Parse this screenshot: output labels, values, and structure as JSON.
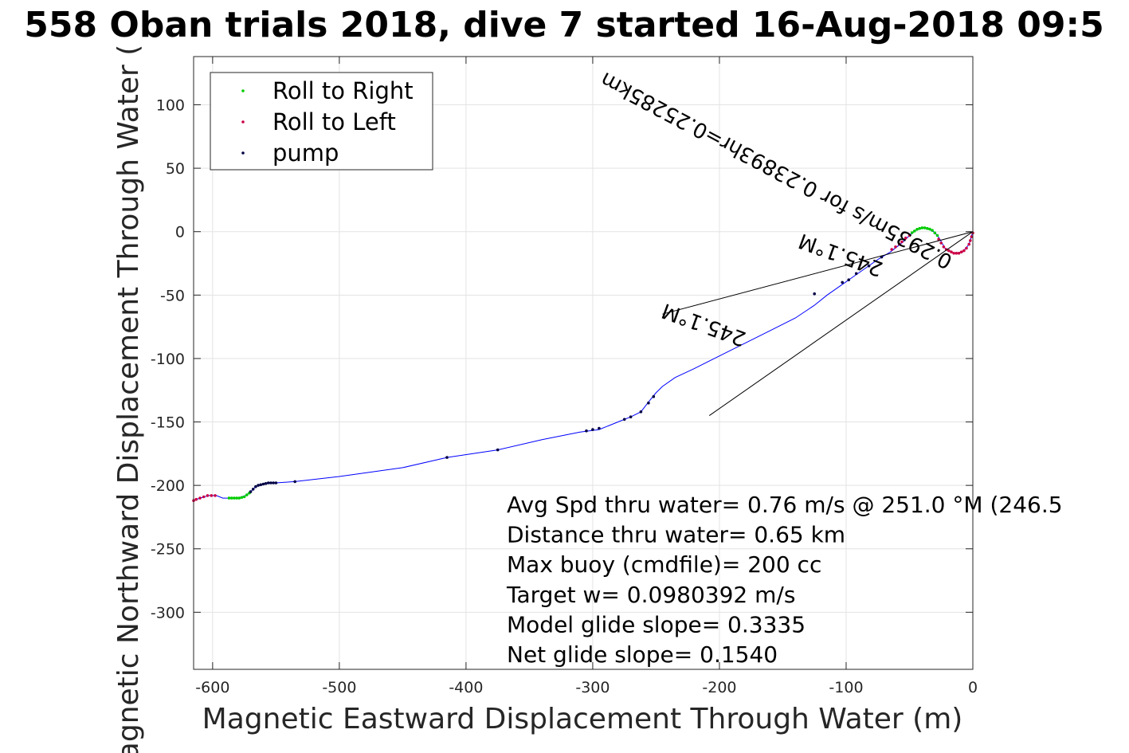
{
  "chart_data": {
    "type": "line",
    "title": "558 Oban trials 2018, dive 7 started 16-Aug-2018 09:5",
    "xlabel": "Magnetic Eastward Displacement Through Water (m)",
    "ylabel": "Magnetic Northward Displacement Through Water (",
    "xlim": [
      -615,
      0
    ],
    "ylim": [
      -345,
      138
    ],
    "xticks": [
      -600,
      -500,
      -400,
      -300,
      -200,
      -100,
      0
    ],
    "yticks": [
      100,
      50,
      0,
      -50,
      -100,
      -150,
      -200,
      -250,
      -300
    ],
    "grid": true,
    "legend_position": "top-left",
    "legend": [
      {
        "label": "Roll to Right",
        "color": "#00cc00"
      },
      {
        "label": "Roll to Left",
        "color": "#cc0044"
      },
      {
        "label": "pump",
        "color": "#000044"
      }
    ],
    "colors": {
      "track": "#0000ff",
      "roll_right": "#00cc00",
      "roll_left": "#cc0044",
      "pump": "#000044",
      "annotation": "#000000"
    },
    "track": [
      [
        0,
        0
      ],
      [
        -3,
        -10
      ],
      [
        -8,
        -16
      ],
      [
        -15,
        -17
      ],
      [
        -22,
        -13
      ],
      [
        -26,
        -6
      ],
      [
        -28,
        -3
      ],
      [
        -31,
        0
      ],
      [
        -35,
        2
      ],
      [
        -40,
        3
      ],
      [
        -45,
        1
      ],
      [
        -50,
        -3
      ],
      [
        -55,
        -8
      ],
      [
        -60,
        -12
      ],
      [
        -65,
        -16
      ],
      [
        -75,
        -22
      ],
      [
        -85,
        -29
      ],
      [
        -95,
        -36
      ],
      [
        -105,
        -43
      ],
      [
        -115,
        -50
      ],
      [
        -125,
        -58
      ],
      [
        -140,
        -68
      ],
      [
        -160,
        -78
      ],
      [
        -180,
        -88
      ],
      [
        -200,
        -98
      ],
      [
        -220,
        -108
      ],
      [
        -235,
        -115
      ],
      [
        -245,
        -122
      ],
      [
        -250,
        -127
      ],
      [
        -255,
        -133
      ],
      [
        -262,
        -142
      ],
      [
        -270,
        -146
      ],
      [
        -280,
        -150
      ],
      [
        -295,
        -156
      ],
      [
        -310,
        -158
      ],
      [
        -340,
        -164
      ],
      [
        -375,
        -172
      ],
      [
        -415,
        -178
      ],
      [
        -450,
        -186
      ],
      [
        -500,
        -193
      ],
      [
        -535,
        -197
      ],
      [
        -550,
        -198
      ],
      [
        -560,
        -199
      ],
      [
        -566,
        -201
      ],
      [
        -570,
        -205
      ],
      [
        -574,
        -208
      ],
      [
        -580,
        -210
      ],
      [
        -585,
        -210
      ],
      [
        -592,
        -210
      ],
      [
        -597,
        -208
      ],
      [
        -603,
        -208
      ],
      [
        -610,
        -210
      ],
      [
        -615,
        -212
      ]
    ],
    "roll_right_points": [
      [
        -28,
        -3
      ],
      [
        -30,
        -1
      ],
      [
        -32,
        1
      ],
      [
        -34,
        2
      ],
      [
        -36,
        2.5
      ],
      [
        -38,
        3
      ],
      [
        -40,
        3
      ],
      [
        -42,
        2.5
      ],
      [
        -44,
        1.8
      ],
      [
        -46,
        0.5
      ],
      [
        -48,
        -0.8
      ],
      [
        -571,
        -206
      ],
      [
        -573,
        -207.5
      ],
      [
        -575,
        -209
      ],
      [
        -577,
        -209.5
      ],
      [
        -579,
        -210
      ],
      [
        -581,
        -210
      ],
      [
        -583,
        -210
      ],
      [
        -585,
        -210
      ],
      [
        -587,
        -210
      ]
    ],
    "roll_left_points": [
      [
        0,
        -1
      ],
      [
        -1,
        -4
      ],
      [
        -2,
        -7
      ],
      [
        -3,
        -10
      ],
      [
        -5,
        -13
      ],
      [
        -7,
        -15
      ],
      [
        -9,
        -16
      ],
      [
        -11,
        -17
      ],
      [
        -13,
        -17
      ],
      [
        -15,
        -17
      ],
      [
        -17,
        -16
      ],
      [
        -19,
        -15
      ],
      [
        -21,
        -14
      ],
      [
        -23,
        -12
      ],
      [
        -25,
        -9
      ],
      [
        -27,
        -6
      ],
      [
        -50,
        -3
      ],
      [
        -53,
        -5
      ],
      [
        -56,
        -8
      ],
      [
        -58,
        -10
      ],
      [
        -61,
        -12
      ],
      [
        -64,
        -14
      ],
      [
        -598,
        -208
      ],
      [
        -601,
        -208
      ],
      [
        -604,
        -208
      ],
      [
        -607,
        -209
      ],
      [
        -610,
        -210
      ],
      [
        -613,
        -211
      ],
      [
        -615,
        -212
      ]
    ],
    "pump_points": [
      [
        -72,
        -20
      ],
      [
        -82,
        -27
      ],
      [
        -92,
        -33
      ],
      [
        -98,
        -38
      ],
      [
        -103,
        -40
      ],
      [
        -125,
        -49
      ],
      [
        -252,
        -130
      ],
      [
        -256,
        -135
      ],
      [
        -262,
        -142
      ],
      [
        -270,
        -146
      ],
      [
        -275,
        -148
      ],
      [
        -295,
        -155
      ],
      [
        -300,
        -156
      ],
      [
        -305,
        -157
      ],
      [
        -375,
        -172
      ],
      [
        -415,
        -178
      ],
      [
        -535,
        -197
      ],
      [
        -550,
        -198
      ],
      [
        -552,
        -198
      ],
      [
        -554,
        -198
      ],
      [
        -556,
        -198
      ],
      [
        -558,
        -198.5
      ],
      [
        -560,
        -199
      ],
      [
        -562,
        -199.5
      ],
      [
        -564,
        -200
      ],
      [
        -566,
        -201
      ],
      [
        -568,
        -203
      ],
      [
        -570,
        -205
      ]
    ],
    "annotation_lines": [
      {
        "from": [
          0,
          0
        ],
        "to": [
          -245,
          -65
        ]
      },
      {
        "from": [
          0,
          0
        ],
        "to": [
          -208,
          -145
        ]
      }
    ],
    "annotation_texts": [
      {
        "text": "0.2935m/s for 0.23893hr=0.25285km",
        "anchor": [
          -15,
          -20
        ],
        "angle_deg": 208
      },
      {
        "text": "245.1°M",
        "anchor": [
          -70,
          -25
        ],
        "angle_deg": 200
      },
      {
        "text": "245.1°M",
        "anchor": [
          -178,
          -80
        ],
        "angle_deg": 200
      }
    ],
    "stats": [
      "Avg Spd thru water=  0.76 m/s @ 251.0 °M (246.5",
      "Distance thru water=  0.65 km",
      "Max buoy (cmdfile)= 200 cc",
      "Target w= 0.0980392 m/s",
      "Model glide slope= 0.3335",
      "Net glide slope= 0.1540"
    ]
  }
}
